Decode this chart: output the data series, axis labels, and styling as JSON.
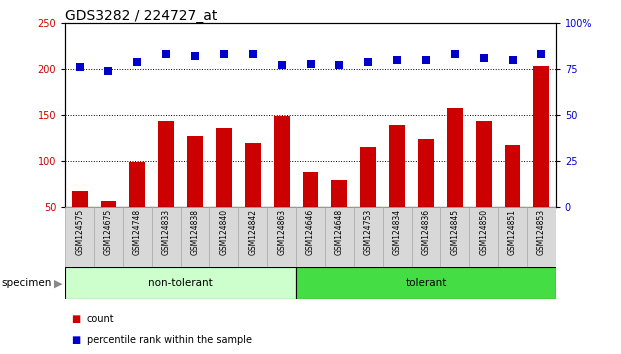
{
  "title": "GDS3282 / 224727_at",
  "categories": [
    "GSM124575",
    "GSM124675",
    "GSM124748",
    "GSM124833",
    "GSM124838",
    "GSM124840",
    "GSM124842",
    "GSM124863",
    "GSM124646",
    "GSM124648",
    "GSM124753",
    "GSM124834",
    "GSM124836",
    "GSM124845",
    "GSM124850",
    "GSM124851",
    "GSM124853"
  ],
  "count_values": [
    68,
    57,
    99,
    143,
    127,
    136,
    120,
    149,
    88,
    79,
    115,
    139,
    124,
    158,
    143,
    117,
    203
  ],
  "percentile_values": [
    76,
    74,
    79,
    83,
    82,
    83,
    83,
    77,
    78,
    77,
    79,
    80,
    80,
    83,
    81,
    80,
    83
  ],
  "non_tolerant_count": 8,
  "tolerant_count": 9,
  "bar_color": "#cc0000",
  "dot_color": "#0000cc",
  "non_tolerant_bg": "#ccffcc",
  "tolerant_bg": "#44dd44",
  "ylim_left": [
    50,
    250
  ],
  "ylim_right": [
    0,
    100
  ],
  "yticks_left": [
    50,
    100,
    150,
    200,
    250
  ],
  "yticks_right": [
    0,
    25,
    50,
    75,
    100
  ],
  "y_axis_color_left": "#cc0000",
  "y_axis_color_right": "#0000cc",
  "legend_count_label": "count",
  "legend_percentile_label": "percentile rank within the sample",
  "specimen_label": "specimen",
  "dotted_lines": [
    100,
    150,
    200
  ],
  "title_fontsize": 10,
  "tick_fontsize": 7,
  "bar_width": 0.55,
  "dot_size": 30
}
